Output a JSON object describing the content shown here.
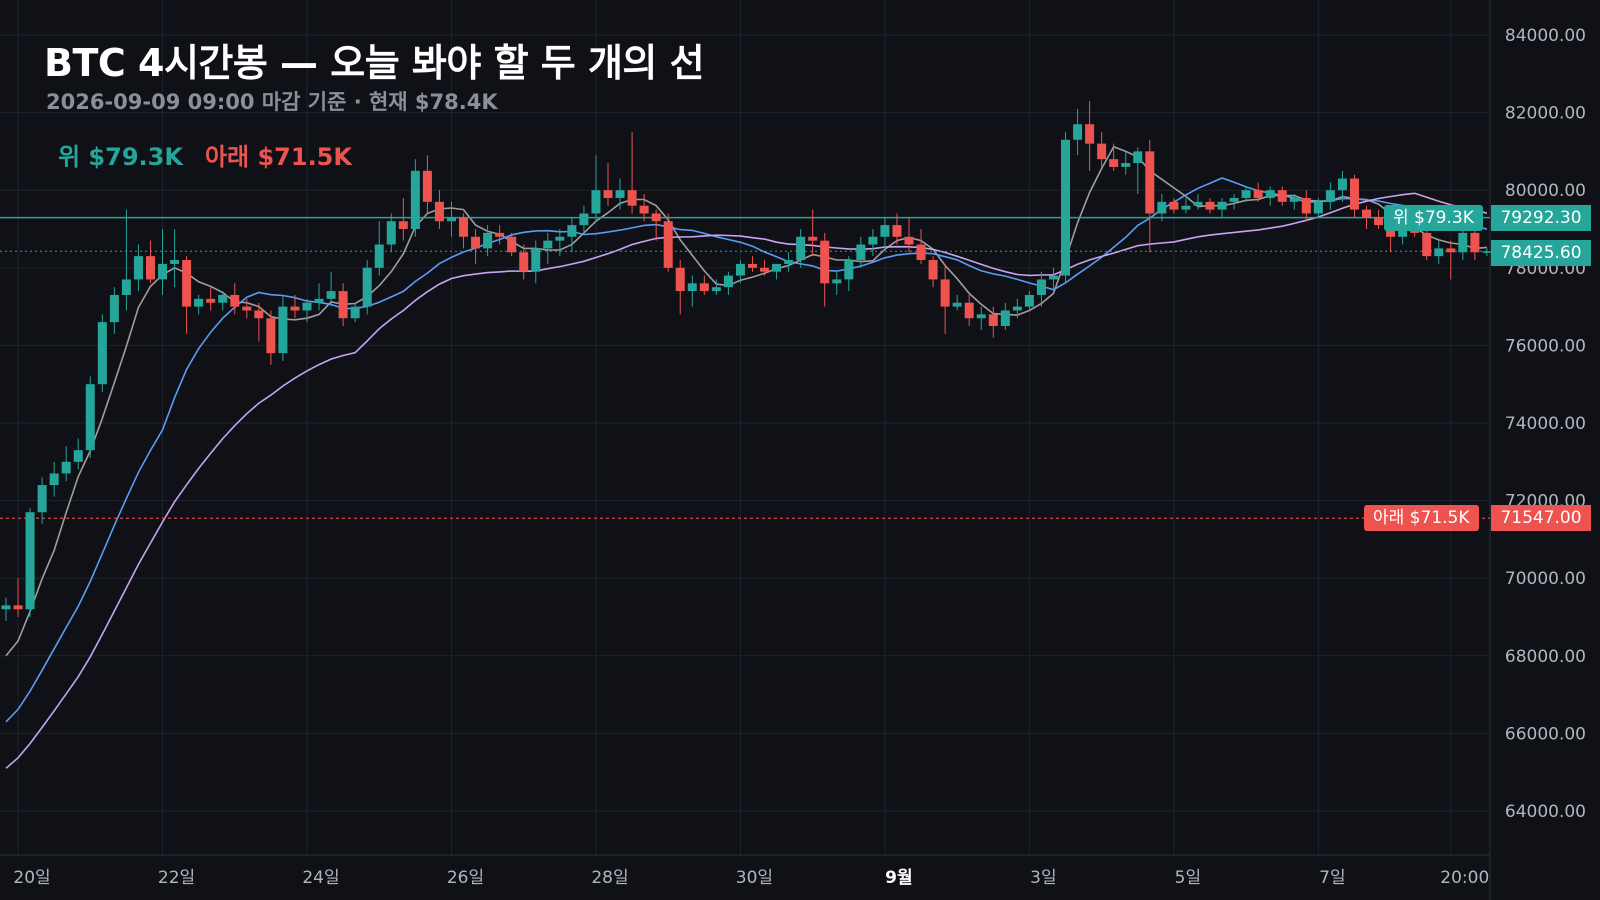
{
  "header": {
    "title": "BTC 4시간봉 — 오늘 봐야 할 두 개의 선",
    "subtitle": "2026-09-09 09:00 마감 기준 · 현재 $78.4K"
  },
  "legend": {
    "upper": "위 $79.3K",
    "lower": "아래 $71.5K"
  },
  "levels": {
    "upper": {
      "value": 79292.3,
      "label": "위 $79.3K",
      "axis_label": "79292.30",
      "color": "#26a69a"
    },
    "lower": {
      "value": 71547.0,
      "label": "아래 $71.5K",
      "axis_label": "71547.00",
      "color": "#ef5350"
    },
    "last": {
      "value": 78425.6,
      "axis_label": "78425.60",
      "color": "#26a69a"
    }
  },
  "colors": {
    "background": "#0f1117",
    "up": "#26a69a",
    "down": "#ef5350",
    "grid": "#1f232d",
    "ma_fast": "#9e9e9e",
    "ma_mid": "#5b9cf5",
    "ma_slow": "#c9a3f0"
  },
  "chart_data": {
    "type": "candlestick",
    "ylim": [
      62500,
      85000
    ],
    "y_ticks": [
      64000,
      66000,
      68000,
      70000,
      72000,
      74000,
      76000,
      78000,
      80000,
      82000,
      84000
    ],
    "y_tick_labels": [
      "64000.00",
      "66000.00",
      "68000.00",
      "70000.00",
      "72000.00",
      "74000.00",
      "76000.00",
      "78000.00",
      "80000.00",
      "82000.00",
      "84000.00"
    ],
    "x_ticks": [
      {
        "label": "20일",
        "index": 1,
        "bold": false
      },
      {
        "label": "22일",
        "index": 13,
        "bold": false
      },
      {
        "label": "24일",
        "index": 25,
        "bold": false
      },
      {
        "label": "26일",
        "index": 37,
        "bold": false
      },
      {
        "label": "28일",
        "index": 49,
        "bold": false
      },
      {
        "label": "30일",
        "index": 61,
        "bold": false
      },
      {
        "label": "9월",
        "index": 73,
        "bold": true
      },
      {
        "label": "3일",
        "index": 85,
        "bold": false
      },
      {
        "label": "5일",
        "index": 97,
        "bold": false
      },
      {
        "label": "7일",
        "index": 109,
        "bold": false
      },
      {
        "label": "20:00",
        "index": 120,
        "bold": false
      }
    ],
    "candles": [
      [
        69200,
        69500,
        68900,
        69300
      ],
      [
        69300,
        70000,
        69000,
        69200
      ],
      [
        69200,
        71800,
        69000,
        71700
      ],
      [
        71700,
        72600,
        71400,
        72400
      ],
      [
        72400,
        73000,
        72100,
        72700
      ],
      [
        72700,
        73400,
        72500,
        73000
      ],
      [
        73000,
        73600,
        72800,
        73300
      ],
      [
        73300,
        75200,
        73100,
        75000
      ],
      [
        75000,
        76800,
        74800,
        76600
      ],
      [
        76600,
        77500,
        76300,
        77300
      ],
      [
        77300,
        79500,
        76900,
        77700
      ],
      [
        77700,
        78600,
        77400,
        78300
      ],
      [
        78300,
        78700,
        77600,
        77700
      ],
      [
        77700,
        79000,
        77300,
        78100
      ],
      [
        78100,
        79000,
        77500,
        78200
      ],
      [
        78200,
        78300,
        76300,
        77000
      ],
      [
        77000,
        77300,
        76800,
        77200
      ],
      [
        77200,
        77500,
        76900,
        77100
      ],
      [
        77100,
        77400,
        76900,
        77300
      ],
      [
        77300,
        77600,
        76800,
        77000
      ],
      [
        77000,
        77200,
        76700,
        76900
      ],
      [
        76900,
        77100,
        76100,
        76700
      ],
      [
        76700,
        76900,
        75500,
        75800
      ],
      [
        75800,
        77300,
        75600,
        77000
      ],
      [
        77000,
        77300,
        76700,
        76900
      ],
      [
        76900,
        77200,
        76600,
        77100
      ],
      [
        77100,
        77600,
        76900,
        77200
      ],
      [
        77200,
        77900,
        77000,
        77400
      ],
      [
        77400,
        77600,
        76500,
        76700
      ],
      [
        76700,
        77100,
        76600,
        77000
      ],
      [
        77000,
        78200,
        76800,
        78000
      ],
      [
        78000,
        79200,
        77800,
        78600
      ],
      [
        78600,
        79400,
        78400,
        79200
      ],
      [
        79200,
        79800,
        78700,
        79000
      ],
      [
        79000,
        80800,
        78800,
        80500
      ],
      [
        80500,
        80900,
        79400,
        79700
      ],
      [
        79700,
        80000,
        79000,
        79200
      ],
      [
        79200,
        79700,
        78800,
        79300
      ],
      [
        79300,
        79400,
        78500,
        78800
      ],
      [
        78800,
        79000,
        78100,
        78500
      ],
      [
        78500,
        79100,
        78300,
        78900
      ],
      [
        78900,
        79100,
        78600,
        78800
      ],
      [
        78800,
        78900,
        78300,
        78400
      ],
      [
        78400,
        78600,
        77700,
        77900
      ],
      [
        77900,
        78700,
        77600,
        78500
      ],
      [
        78500,
        78900,
        78100,
        78700
      ],
      [
        78700,
        79000,
        78300,
        78800
      ],
      [
        78800,
        79300,
        78400,
        79100
      ],
      [
        79100,
        79600,
        78900,
        79400
      ],
      [
        79400,
        80900,
        79200,
        80000
      ],
      [
        80000,
        80700,
        79600,
        79800
      ],
      [
        79800,
        80300,
        79500,
        80000
      ],
      [
        80000,
        81500,
        79400,
        79600
      ],
      [
        79600,
        79900,
        79200,
        79400
      ],
      [
        79400,
        79500,
        78700,
        79200
      ],
      [
        79200,
        79400,
        77900,
        78000
      ],
      [
        78000,
        78200,
        76800,
        77400
      ],
      [
        77400,
        77800,
        77000,
        77600
      ],
      [
        77600,
        77800,
        77300,
        77400
      ],
      [
        77400,
        77700,
        77300,
        77500
      ],
      [
        77500,
        77900,
        77300,
        77800
      ],
      [
        77800,
        78200,
        77600,
        78100
      ],
      [
        78100,
        78300,
        77900,
        78000
      ],
      [
        78000,
        78200,
        77800,
        77900
      ],
      [
        77900,
        78100,
        77700,
        78100
      ],
      [
        78100,
        78400,
        77900,
        78200
      ],
      [
        78200,
        79000,
        78000,
        78800
      ],
      [
        78800,
        79500,
        78300,
        78700
      ],
      [
        78700,
        78900,
        77000,
        77600
      ],
      [
        77600,
        77900,
        77300,
        77700
      ],
      [
        77700,
        78300,
        77400,
        78200
      ],
      [
        78200,
        78800,
        78000,
        78600
      ],
      [
        78600,
        79000,
        78300,
        78800
      ],
      [
        78800,
        79300,
        78500,
        79100
      ],
      [
        79100,
        79400,
        78600,
        78800
      ],
      [
        78800,
        79300,
        78400,
        78600
      ],
      [
        78600,
        79000,
        78100,
        78200
      ],
      [
        78200,
        78300,
        77500,
        77700
      ],
      [
        77700,
        78100,
        76300,
        77000
      ],
      [
        77000,
        77300,
        76900,
        77100
      ],
      [
        77100,
        77300,
        76500,
        76700
      ],
      [
        76700,
        77000,
        76400,
        76800
      ],
      [
        76800,
        77000,
        76200,
        76500
      ],
      [
        76500,
        77100,
        76400,
        76900
      ],
      [
        76900,
        77200,
        76700,
        77000
      ],
      [
        77000,
        77400,
        76900,
        77300
      ],
      [
        77300,
        77900,
        77000,
        77700
      ],
      [
        77700,
        78000,
        77400,
        77800
      ],
      [
        77800,
        81500,
        77600,
        81300
      ],
      [
        81300,
        82100,
        80900,
        81700
      ],
      [
        81700,
        82300,
        80500,
        81200
      ],
      [
        81200,
        81500,
        80600,
        80800
      ],
      [
        80800,
        81200,
        80500,
        80600
      ],
      [
        80600,
        81000,
        80400,
        80700
      ],
      [
        80700,
        81100,
        79900,
        81000
      ],
      [
        81000,
        81300,
        78400,
        79400
      ],
      [
        79400,
        79900,
        79200,
        79700
      ],
      [
        79700,
        79800,
        79400,
        79500
      ],
      [
        79500,
        79800,
        79400,
        79600
      ],
      [
        79600,
        79900,
        79500,
        79700
      ],
      [
        79700,
        79800,
        79400,
        79500
      ],
      [
        79500,
        79800,
        79300,
        79700
      ],
      [
        79700,
        79900,
        79500,
        79800
      ],
      [
        79800,
        80100,
        79700,
        80000
      ],
      [
        80000,
        80200,
        79700,
        79800
      ],
      [
        79800,
        80100,
        79600,
        80000
      ],
      [
        80000,
        80100,
        79600,
        79700
      ],
      [
        79700,
        79900,
        79500,
        79800
      ],
      [
        79800,
        80000,
        79200,
        79400
      ],
      [
        79400,
        79800,
        79300,
        79700
      ],
      [
        79700,
        80200,
        79500,
        80000
      ],
      [
        80000,
        80500,
        79700,
        80300
      ],
      [
        80300,
        80400,
        79300,
        79500
      ],
      [
        79500,
        79600,
        79000,
        79300
      ],
      [
        79300,
        79500,
        79000,
        79100
      ],
      [
        79100,
        79300,
        78400,
        78800
      ],
      [
        78800,
        79300,
        78600,
        79100
      ],
      [
        79100,
        79200,
        78800,
        78900
      ],
      [
        78900,
        79000,
        78200,
        78300
      ],
      [
        78300,
        78700,
        78100,
        78500
      ],
      [
        78500,
        78700,
        77700,
        78400
      ],
      [
        78400,
        79100,
        78200,
        78900
      ],
      [
        78900,
        79000,
        78200,
        78400
      ],
      [
        78400,
        78500,
        78300,
        78425.6
      ]
    ]
  }
}
